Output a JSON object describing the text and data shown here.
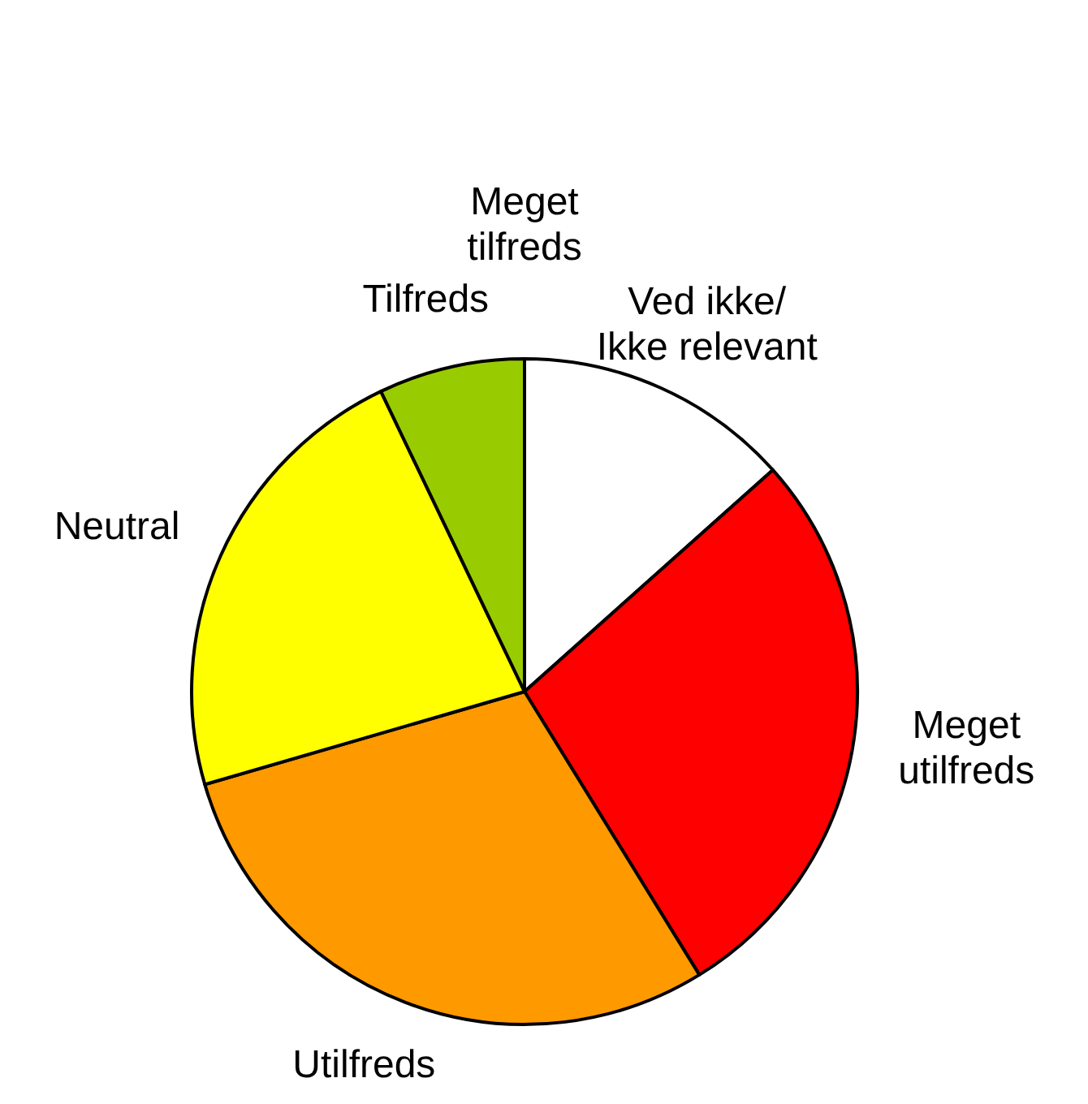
{
  "chart_data": {
    "type": "pie",
    "categories": [
      "Meget\ntilfreds",
      "Ved ikke/\nIkke relevant",
      "Meget\nutilfreds",
      "Utilfreds",
      "Neutral",
      "Tilfreds"
    ],
    "values": [
      0,
      13.4,
      27.8,
      29.3,
      22.4,
      7.1
    ],
    "colors": [
      "#339933",
      "#ffffff",
      "#ff0000",
      "#ff9900",
      "#ffff00",
      "#99cc00"
    ]
  }
}
